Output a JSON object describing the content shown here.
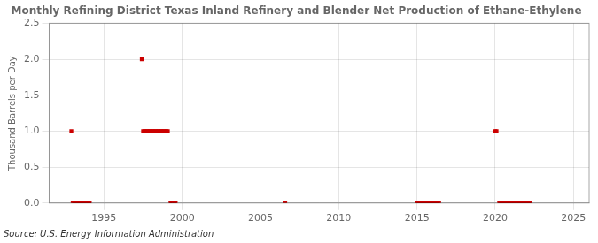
{
  "chart_data": {
    "type": "line",
    "title": "Monthly Refining District Texas Inland Refinery and Blender Net Production of Ethane-Ethylene",
    "ylabel": "Thousand Barrels per Day",
    "source": "Source: U.S. Energy Information Administration",
    "color": "#cc0000",
    "marker": "square",
    "grid": true,
    "xlim": [
      1991.5,
      2026
    ],
    "ylim": [
      0,
      2.5
    ],
    "xticks": [
      1995,
      2000,
      2005,
      2010,
      2015,
      2020,
      2025
    ],
    "yticks": [
      {
        "value": 0.0,
        "label": "0.0"
      },
      0.5,
      {
        "value": 1.0,
        "label": "1.0"
      },
      1.5,
      {
        "value": 2.0,
        "label": "2.0"
      },
      2.5
    ],
    "x": [
      1992.917,
      null,
      1993.0,
      1993.083,
      1993.167,
      1993.25,
      1993.333,
      1993.417,
      1993.5,
      1993.583,
      1993.667,
      1993.75,
      1993.833,
      1993.917,
      1994.0,
      1994.083,
      1994.083,
      null,
      1997.417,
      null,
      1997.5,
      1997.583,
      1997.667,
      1997.75,
      1997.833,
      1997.917,
      1998.0,
      1998.083,
      1998.167,
      1998.25,
      1998.333,
      1998.417,
      1998.5,
      1998.583,
      1998.667,
      1998.75,
      1998.833,
      1998.917,
      1999.0,
      1999.083,
      null,
      1999.25,
      1999.333,
      null,
      1999.5,
      1999.583,
      null,
      2006.583,
      null,
      2015.0,
      2015.083,
      2015.167,
      2015.25,
      2015.333,
      2015.417,
      2015.5,
      2015.583,
      2015.667,
      2015.75,
      2015.833,
      2015.917,
      2016.0,
      2016.083,
      2016.167,
      2016.25,
      2016.333,
      2016.417,
      null,
      2020.0,
      2020.083,
      null,
      2020.25,
      2020.333,
      2020.417,
      2020.5,
      2020.583,
      2020.667,
      2020.75,
      2020.833,
      2020.917,
      2021.0,
      2021.083,
      2021.167,
      2021.25,
      2021.333,
      2021.417,
      2021.5,
      2021.583,
      2021.667,
      2021.75,
      2021.833,
      2021.917,
      2022.0,
      2022.083,
      2022.167,
      2022.25
    ],
    "values": [
      1.0,
      null,
      0.0,
      0.0,
      0.0,
      0.0,
      0.0,
      0.0,
      0.0,
      0.0,
      0.0,
      0.0,
      0.0,
      0.0,
      0.0,
      0.0,
      0.0,
      null,
      2.0,
      null,
      1.0,
      1.0,
      1.0,
      1.0,
      1.0,
      1.0,
      1.0,
      1.0,
      1.0,
      1.0,
      1.0,
      1.0,
      1.0,
      1.0,
      1.0,
      1.0,
      1.0,
      1.0,
      1.0,
      1.0,
      null,
      0.0,
      0.0,
      null,
      0.0,
      0.0,
      null,
      0.0,
      null,
      0.0,
      0.0,
      0.0,
      0.0,
      0.0,
      0.0,
      0.0,
      0.0,
      0.0,
      0.0,
      0.0,
      0.0,
      0.0,
      0.0,
      0.0,
      0.0,
      0.0,
      0.0,
      null,
      1.0,
      1.0,
      null,
      0.0,
      0.0,
      0.0,
      0.0,
      0.0,
      0.0,
      0.0,
      0.0,
      0.0,
      0.0,
      0.0,
      0.0,
      0.0,
      0.0,
      0.0,
      0.0,
      0.0,
      0.0,
      0.0,
      0.0,
      0.0,
      0.0,
      0.0,
      0.0,
      0.0
    ]
  }
}
